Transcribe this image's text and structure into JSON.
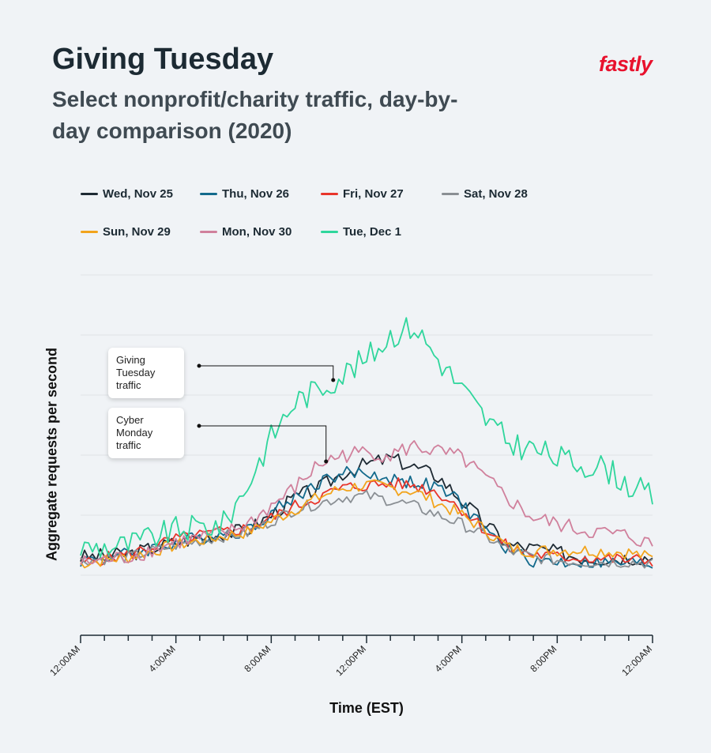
{
  "header": {
    "title": "Giving Tuesday",
    "subtitle": "Select nonprofit/charity traffic, day-by-day comparison (2020)",
    "brand": "fastly"
  },
  "colors": {
    "background": "#f0f3f6",
    "brand": "#e8112d",
    "grid": "#dfe3e7",
    "axis": "#1c2a33"
  },
  "annotations": {
    "giving_tuesday": "Giving Tuesday traffic",
    "cyber_monday": "Cyber Monday traffic"
  },
  "chart_data": {
    "type": "line",
    "title": "",
    "xlabel": "Time (EST)",
    "ylabel": "Aggregate requests per second",
    "x_range_hours": [
      0,
      24
    ],
    "x_tick_labels": [
      "12:00AM",
      "4:00AM",
      "8:00AM",
      "12:00PM",
      "4:00PM",
      "8:00PM",
      "12:00AM"
    ],
    "y_unit_note": "relative scale (unlabeled axis)",
    "ylim": [
      0,
      6
    ],
    "y_gridlines": [
      1,
      2,
      3,
      4,
      5,
      6
    ],
    "grid": true,
    "legend_placement": "top",
    "series": [
      {
        "name": "Wed, Nov 25",
        "color": "#1e2a33",
        "points": [
          [
            0,
            1.3
          ],
          [
            2,
            1.35
          ],
          [
            4,
            1.55
          ],
          [
            6,
            1.7
          ],
          [
            7,
            1.75
          ],
          [
            8,
            2.0
          ],
          [
            9,
            2.3
          ],
          [
            10,
            2.45
          ],
          [
            11,
            2.7
          ],
          [
            12,
            2.85
          ],
          [
            13,
            2.95
          ],
          [
            14,
            2.8
          ],
          [
            15,
            2.65
          ],
          [
            16,
            2.25
          ],
          [
            17,
            1.85
          ],
          [
            18,
            1.5
          ],
          [
            19,
            1.45
          ],
          [
            20,
            1.38
          ],
          [
            21,
            1.3
          ],
          [
            22,
            1.28
          ],
          [
            23,
            1.3
          ],
          [
            24,
            1.3
          ]
        ]
      },
      {
        "name": "Thu, Nov 26",
        "color": "#136a8c",
        "points": [
          [
            0,
            1.25
          ],
          [
            2,
            1.35
          ],
          [
            4,
            1.55
          ],
          [
            6,
            1.7
          ],
          [
            7,
            1.75
          ],
          [
            8,
            2.05
          ],
          [
            9,
            2.3
          ],
          [
            10,
            2.55
          ],
          [
            11,
            2.7
          ],
          [
            12,
            2.7
          ],
          [
            13,
            2.6
          ],
          [
            14,
            2.55
          ],
          [
            15,
            2.45
          ],
          [
            16,
            2.2
          ],
          [
            17,
            1.75
          ],
          [
            18,
            1.4
          ],
          [
            19,
            1.25
          ],
          [
            20,
            1.22
          ],
          [
            21,
            1.22
          ],
          [
            22,
            1.2
          ],
          [
            23,
            1.2
          ],
          [
            24,
            1.18
          ]
        ]
      },
      {
        "name": "Fri, Nov 27",
        "color": "#e8352b",
        "points": [
          [
            0,
            1.2
          ],
          [
            2,
            1.35
          ],
          [
            4,
            1.6
          ],
          [
            6,
            1.72
          ],
          [
            7,
            1.78
          ],
          [
            8,
            1.95
          ],
          [
            9,
            2.15
          ],
          [
            10,
            2.3
          ],
          [
            11,
            2.45
          ],
          [
            12,
            2.5
          ],
          [
            13,
            2.52
          ],
          [
            14,
            2.5
          ],
          [
            15,
            2.38
          ],
          [
            16,
            2.1
          ],
          [
            17,
            1.75
          ],
          [
            18,
            1.45
          ],
          [
            19,
            1.35
          ],
          [
            20,
            1.3
          ],
          [
            21,
            1.3
          ],
          [
            22,
            1.28
          ],
          [
            23,
            1.25
          ],
          [
            24,
            1.25
          ]
        ]
      },
      {
        "name": "Sat, Nov 28",
        "color": "#8a8f94",
        "points": [
          [
            0,
            1.25
          ],
          [
            2,
            1.3
          ],
          [
            4,
            1.5
          ],
          [
            6,
            1.65
          ],
          [
            7,
            1.7
          ],
          [
            8,
            1.9
          ],
          [
            9,
            2.1
          ],
          [
            10,
            2.2
          ],
          [
            11,
            2.3
          ],
          [
            12,
            2.32
          ],
          [
            13,
            2.25
          ],
          [
            14,
            2.15
          ],
          [
            15,
            2.0
          ],
          [
            16,
            1.85
          ],
          [
            17,
            1.65
          ],
          [
            18,
            1.4
          ],
          [
            19,
            1.3
          ],
          [
            20,
            1.25
          ],
          [
            21,
            1.22
          ],
          [
            22,
            1.22
          ],
          [
            23,
            1.22
          ],
          [
            24,
            1.2
          ]
        ]
      },
      {
        "name": "Sun, Nov 29",
        "color": "#f2a41c",
        "points": [
          [
            0,
            1.2
          ],
          [
            2,
            1.3
          ],
          [
            4,
            1.5
          ],
          [
            6,
            1.65
          ],
          [
            7,
            1.72
          ],
          [
            8,
            1.9
          ],
          [
            9,
            2.1
          ],
          [
            10,
            2.3
          ],
          [
            11,
            2.45
          ],
          [
            12,
            2.5
          ],
          [
            13,
            2.45
          ],
          [
            14,
            2.4
          ],
          [
            15,
            2.2
          ],
          [
            16,
            2.0
          ],
          [
            17,
            1.75
          ],
          [
            18,
            1.45
          ],
          [
            19,
            1.4
          ],
          [
            20,
            1.42
          ],
          [
            21,
            1.42
          ],
          [
            22,
            1.4
          ],
          [
            23,
            1.38
          ],
          [
            24,
            1.28
          ]
        ]
      },
      {
        "name": "Mon, Nov 30",
        "color": "#d0809c",
        "points": [
          [
            0,
            1.2
          ],
          [
            2,
            1.3
          ],
          [
            4,
            1.55
          ],
          [
            6,
            1.68
          ],
          [
            7,
            1.85
          ],
          [
            8,
            2.15
          ],
          [
            9,
            2.45
          ],
          [
            10,
            2.85
          ],
          [
            11,
            3.0
          ],
          [
            12,
            3.05
          ],
          [
            13,
            3.0
          ],
          [
            14,
            3.15
          ],
          [
            15,
            3.05
          ],
          [
            16,
            2.95
          ],
          [
            17,
            2.6
          ],
          [
            18,
            2.25
          ],
          [
            19,
            1.95
          ],
          [
            20,
            1.85
          ],
          [
            21,
            1.75
          ],
          [
            22,
            1.7
          ],
          [
            23,
            1.65
          ],
          [
            24,
            1.5
          ]
        ]
      },
      {
        "name": "Tue, Dec 1",
        "color": "#2fd69c",
        "points": [
          [
            0,
            1.45
          ],
          [
            2,
            1.5
          ],
          [
            4,
            1.75
          ],
          [
            6,
            1.85
          ],
          [
            7,
            2.5
          ],
          [
            8,
            3.3
          ],
          [
            9,
            3.9
          ],
          [
            10,
            4.1
          ],
          [
            11,
            4.35
          ],
          [
            12,
            4.6
          ],
          [
            13,
            5.0
          ],
          [
            14,
            5.15
          ],
          [
            15,
            4.6
          ],
          [
            16,
            4.1
          ],
          [
            17,
            3.6
          ],
          [
            18,
            3.2
          ],
          [
            19,
            3.1
          ],
          [
            20,
            2.95
          ],
          [
            21,
            2.85
          ],
          [
            22,
            2.8
          ],
          [
            23,
            2.5
          ],
          [
            24,
            2.3
          ]
        ]
      }
    ]
  }
}
